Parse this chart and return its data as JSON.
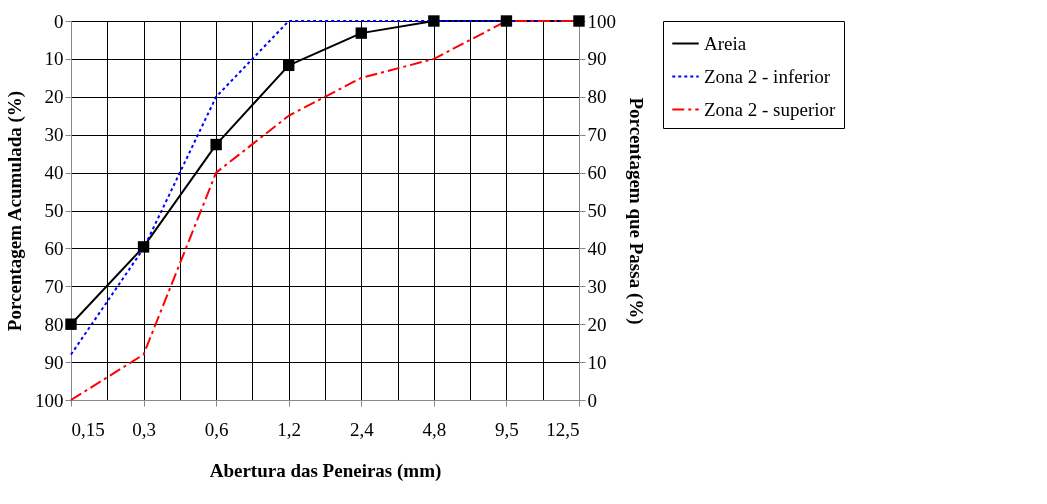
{
  "chart_data": {
    "type": "line",
    "xlabel": "Abertura das Peneiras (mm)",
    "ylabel": "Porcentagem Acumulada (%)",
    "y2label": "Porcentagem que Passa (%)",
    "categories": [
      "0,15",
      "0,3",
      "0,6",
      "1,2",
      "2,4",
      "4,8",
      "9,5",
      "12,5"
    ],
    "series": [
      {
        "name": "Areia",
        "color": "#000000",
        "marker": "square",
        "line_style": "solid",
        "values": [
          80,
          59.6,
          32.6,
          11.7,
          3.2,
          0,
          0,
          0
        ]
      },
      {
        "name": "Zona 2 - inferior",
        "color": "#0000ff",
        "marker": "none",
        "line_style": "dotted",
        "values": [
          88,
          60,
          20,
          0,
          0,
          0,
          0,
          0
        ]
      },
      {
        "name": "Zona 2 - superior",
        "color": "#ff0000",
        "marker": "none",
        "line_style": "dashdot",
        "values": [
          100,
          88,
          40,
          25,
          15,
          10,
          0,
          0
        ]
      }
    ],
    "ylim": [
      100,
      0
    ],
    "yticks": [
      0,
      10,
      20,
      30,
      40,
      50,
      60,
      70,
      80,
      90,
      100
    ],
    "y2lim": [
      0,
      100
    ],
    "y2ticks": [
      0,
      10,
      20,
      30,
      40,
      50,
      60,
      70,
      80,
      90,
      100
    ],
    "grid": true,
    "legend": "right"
  }
}
